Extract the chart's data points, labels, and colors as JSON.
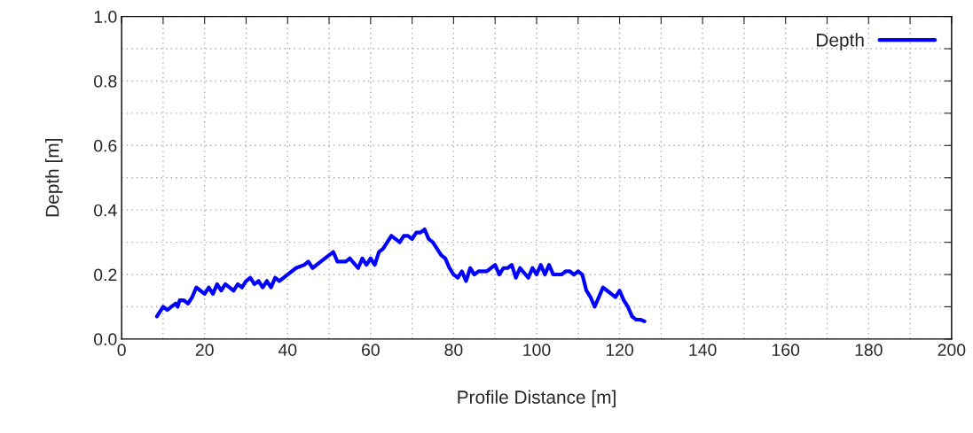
{
  "chart_data": {
    "type": "line",
    "xlabel": "Profile Distance [m]",
    "ylabel": "Depth [m]",
    "xlim": [
      0,
      200
    ],
    "ylim": [
      0,
      1.0
    ],
    "xticks": [
      0,
      {
        "value": 10,
        "label": null
      },
      20,
      {
        "value": 30,
        "label": null
      },
      40,
      {
        "value": 50,
        "label": null
      },
      60,
      {
        "value": 70,
        "label": null
      },
      80,
      {
        "value": 90,
        "label": null
      },
      100,
      {
        "value": 110,
        "label": null
      },
      120,
      {
        "value": 130,
        "label": null
      },
      140,
      {
        "value": 150,
        "label": null
      },
      160,
      {
        "value": 170,
        "label": null
      },
      180,
      {
        "value": 190,
        "label": null
      },
      200
    ],
    "yticks": [
      {
        "value": 0,
        "label": "0.0"
      },
      {
        "value": 0.1,
        "label": null
      },
      0.2,
      {
        "value": 0.3,
        "label": null
      },
      0.4,
      {
        "value": 0.5,
        "label": null
      },
      0.6,
      {
        "value": 0.7,
        "label": null
      },
      0.8,
      {
        "value": 0.9,
        "label": null
      },
      {
        "value": 1.0,
        "label": "1.0"
      }
    ],
    "grid": true,
    "legend": "top right",
    "marker": "none",
    "line_style": "solid",
    "series": [
      {
        "name": "Depth",
        "color": "#0000ff",
        "x": [
          8.5,
          9.5,
          10,
          11,
          12,
          13,
          13.5,
          14,
          15,
          16,
          17,
          18,
          19,
          20,
          21,
          22,
          23,
          24,
          25,
          26,
          27,
          28,
          29,
          30,
          31,
          32,
          33,
          34,
          35,
          36,
          37,
          38,
          40,
          42,
          44,
          45,
          46,
          48,
          50,
          51,
          52,
          54,
          55,
          57,
          58,
          59,
          60,
          61,
          62,
          63,
          64,
          65,
          66,
          67,
          68,
          69,
          70,
          71,
          72,
          73,
          74,
          75,
          76,
          77,
          78,
          79,
          80,
          81,
          82,
          83,
          84,
          85,
          86,
          88,
          90,
          91,
          92,
          93,
          94,
          95,
          96,
          98,
          99,
          100,
          101,
          102,
          103,
          104,
          106,
          107,
          108,
          109,
          110,
          111,
          112,
          113,
          114,
          115,
          116,
          117,
          118,
          119,
          120,
          121,
          122,
          123,
          124,
          125,
          126
        ],
        "values": [
          0.07,
          0.09,
          0.1,
          0.09,
          0.1,
          0.11,
          0.1,
          0.12,
          0.12,
          0.11,
          0.13,
          0.16,
          0.15,
          0.14,
          0.16,
          0.14,
          0.17,
          0.15,
          0.17,
          0.16,
          0.15,
          0.17,
          0.16,
          0.18,
          0.19,
          0.17,
          0.18,
          0.16,
          0.18,
          0.16,
          0.19,
          0.18,
          0.2,
          0.22,
          0.23,
          0.24,
          0.22,
          0.24,
          0.26,
          0.27,
          0.24,
          0.24,
          0.25,
          0.22,
          0.25,
          0.23,
          0.25,
          0.23,
          0.27,
          0.28,
          0.3,
          0.32,
          0.31,
          0.3,
          0.32,
          0.32,
          0.31,
          0.33,
          0.33,
          0.34,
          0.31,
          0.3,
          0.28,
          0.26,
          0.25,
          0.22,
          0.2,
          0.19,
          0.21,
          0.18,
          0.22,
          0.2,
          0.21,
          0.21,
          0.23,
          0.2,
          0.22,
          0.22,
          0.23,
          0.19,
          0.22,
          0.19,
          0.22,
          0.2,
          0.23,
          0.2,
          0.23,
          0.2,
          0.2,
          0.21,
          0.21,
          0.2,
          0.21,
          0.2,
          0.15,
          0.13,
          0.1,
          0.13,
          0.16,
          0.15,
          0.14,
          0.13,
          0.15,
          0.12,
          0.1,
          0.07,
          0.06,
          0.06,
          0.055
        ]
      }
    ]
  }
}
